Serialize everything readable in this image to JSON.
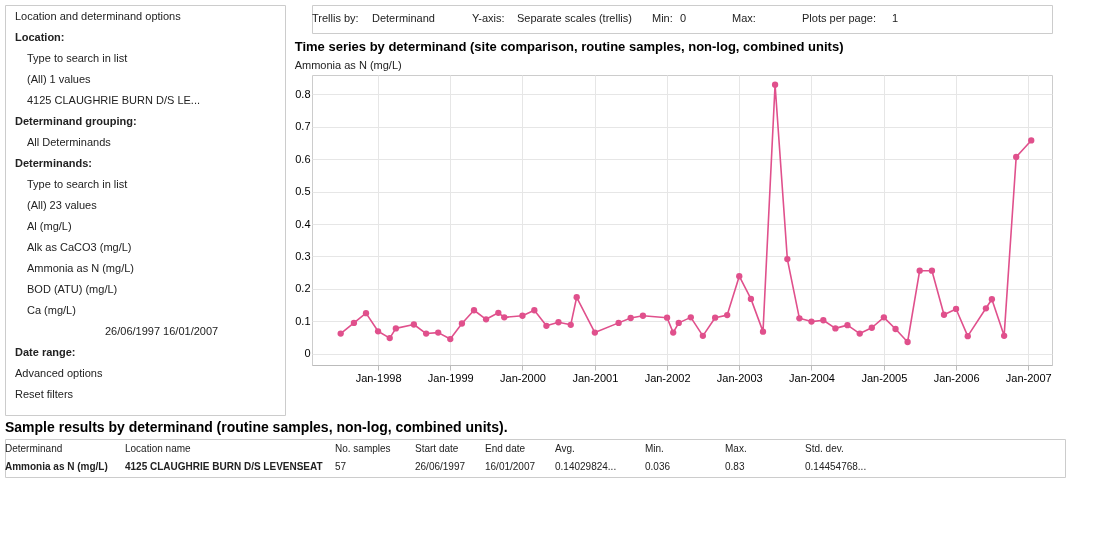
{
  "chart_data": [
    {
      "type": "other",
      "annotations": [
        "Location and determinand options",
        "Location:",
        "Type to search in list",
        "(All) 1 values",
        "4125 CLAUGHRIE BURN D/S LE...",
        "Determinand grouping:",
        "All Determinands",
        "Determinands:",
        "Type to search in list",
        "(All) 23 values",
        "Al (mg/L)",
        "Alk as CaCO3 (mg/L)",
        "Ammonia as N (mg/L)",
        "BOD (ATU) (mg/L)",
        "Ca (mg/L)",
        "26/06/1997  16/01/2007",
        "Date range:",
        "Advanced options",
        "Reset filters"
      ]
    },
    {
      "type": "other",
      "annotations": [
        "Trellis by:",
        "Determinand",
        "Y-axis:",
        "Separate scales (trellis)",
        "Min:",
        "0",
        "Max:",
        "Plots per page:",
        "1"
      ]
    },
    {
      "type": "line",
      "title": "Time series by determinand (site comparison, routine samples, non-log, combined units)",
      "subtitle": "Ammonia as N (mg/L)",
      "x": [
        "1997-06-26",
        "1997-09",
        "1997-11",
        "1998-01",
        "1998-03",
        "1998-04",
        "1998-07",
        "1998-09",
        "1998-11",
        "1999-01",
        "1999-03",
        "1999-05",
        "1999-07",
        "1999-09",
        "1999-10",
        "2000-01",
        "2000-03",
        "2000-05",
        "2000-07",
        "2000-09",
        "2000-10",
        "2001-01",
        "2001-05",
        "2001-07",
        "2001-09",
        "2002-01",
        "2002-02",
        "2002-03",
        "2002-05",
        "2002-07",
        "2002-09",
        "2002-11",
        "2003-01",
        "2003-03",
        "2003-05",
        "2003-07",
        "2003-09",
        "2003-11",
        "2004-01",
        "2004-03",
        "2004-05",
        "2004-07",
        "2004-09",
        "2004-11",
        "2005-01",
        "2005-03",
        "2005-05",
        "2005-07",
        "2005-09",
        "2005-11",
        "2006-01",
        "2006-03",
        "2006-06",
        "2006-07",
        "2006-09",
        "2006-11",
        "2007-01-16"
      ],
      "series": [
        {
          "color": "#e0508c",
          "values": [
            0.062,
            0.095,
            0.125,
            0.069,
            0.048,
            0.078,
            0.09,
            0.062,
            0.065,
            0.045,
            0.093,
            0.134,
            0.106,
            0.126,
            0.112,
            0.117,
            0.134,
            0.086,
            0.097,
            0.089,
            0.174,
            0.065,
            0.095,
            0.11,
            0.117,
            0.111,
            0.065,
            0.095,
            0.112,
            0.055,
            0.111,
            0.119,
            0.239,
            0.169,
            0.068,
            0.83,
            0.292,
            0.109,
            0.099,
            0.103,
            0.078,
            0.088,
            0.062,
            0.08,
            0.112,
            0.076,
            0.036,
            0.256,
            0.256,
            0.12,
            0.138,
            0.054,
            0.14,
            0.168,
            0.055,
            0.607,
            0.658
          ]
        }
      ],
      "xlim": [
        "1997-02",
        "2007-05"
      ],
      "xticks": [
        {
          "value": "1998-01",
          "label": "Jan-1998"
        },
        {
          "value": "1999-01",
          "label": "Jan-1999"
        },
        {
          "value": "2000-01",
          "label": "Jan-2000"
        },
        {
          "value": "2001-01",
          "label": "Jan-2001"
        },
        {
          "value": "2002-01",
          "label": "Jan-2002"
        },
        {
          "value": "2003-01",
          "label": "Jan-2003"
        },
        {
          "value": "2004-01",
          "label": "Jan-2004"
        },
        {
          "value": "2005-01",
          "label": "Jan-2005"
        },
        {
          "value": "2006-01",
          "label": "Jan-2006"
        },
        {
          "value": "2007-01",
          "label": "Jan-2007"
        }
      ],
      "ylim": [
        -0.035,
        0.86
      ],
      "yticks": [
        0,
        0.1,
        0.2,
        0.3,
        0.4,
        0.5,
        0.6,
        0.7,
        0.8
      ],
      "grid": true,
      "marker": "circle",
      "line_style": "solid",
      "legend": false
    },
    {
      "type": "other",
      "title": "Sample results by determinand (routine samples, non-log, combined units).",
      "categories": [
        "Determinand",
        "Location name",
        "No. samples",
        "Start date",
        "End date",
        "Avg.",
        "Min.",
        "Max.",
        "Std. dev."
      ],
      "annotations": [
        "Ammonia as N (mg/L)",
        "4125 CLAUGHRIE BURN D/S LEVENSEAT",
        "57",
        "26/06/1997",
        "16/01/2007",
        "0.14029824...",
        "0.036",
        "0.83",
        "0.14454768..."
      ]
    }
  ]
}
